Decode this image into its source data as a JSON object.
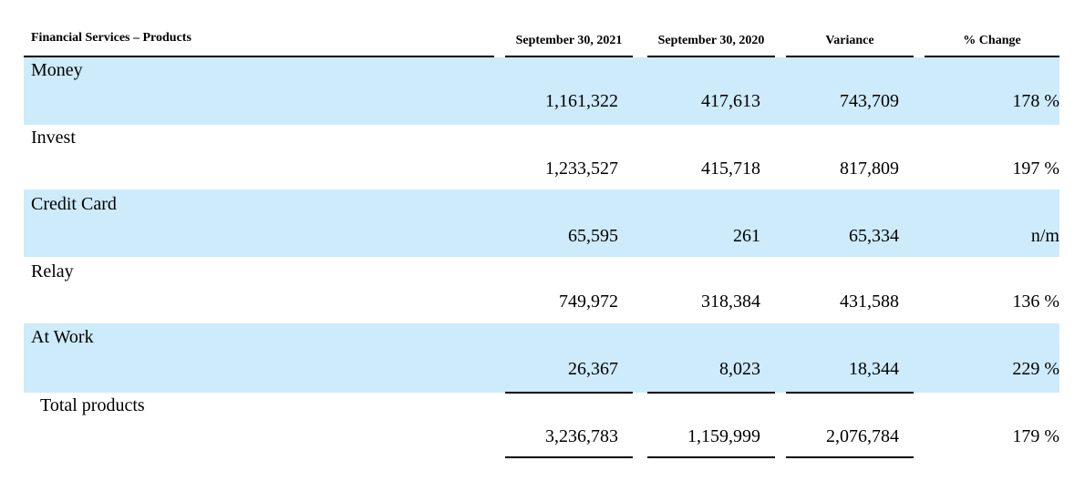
{
  "table": {
    "title": "Financial Services – Products",
    "columns": [
      "September 30, 2021",
      "September 30, 2020",
      "Variance",
      "% Change"
    ],
    "rows": [
      {
        "label": "Money",
        "values": [
          "1,161,322",
          "417,613",
          "743,709",
          "178 %"
        ],
        "shaded": true
      },
      {
        "label": "Invest",
        "values": [
          "1,233,527",
          "415,718",
          "817,809",
          "197 %"
        ],
        "shaded": false
      },
      {
        "label": "Credit Card",
        "values": [
          "65,595",
          "261",
          "65,334",
          "n/m"
        ],
        "shaded": true
      },
      {
        "label": "Relay",
        "values": [
          "749,972",
          "318,384",
          "431,588",
          "136 %"
        ],
        "shaded": false
      },
      {
        "label": "At Work",
        "values": [
          "26,367",
          "8,023",
          "18,344",
          "229 %"
        ],
        "shaded": true
      }
    ],
    "total": {
      "label": "Total products",
      "values": [
        "3,236,783",
        "1,159,999",
        "2,076,784",
        "179 %"
      ]
    }
  },
  "colors": {
    "row_highlight": "#cdebfb",
    "text": "#000000"
  }
}
